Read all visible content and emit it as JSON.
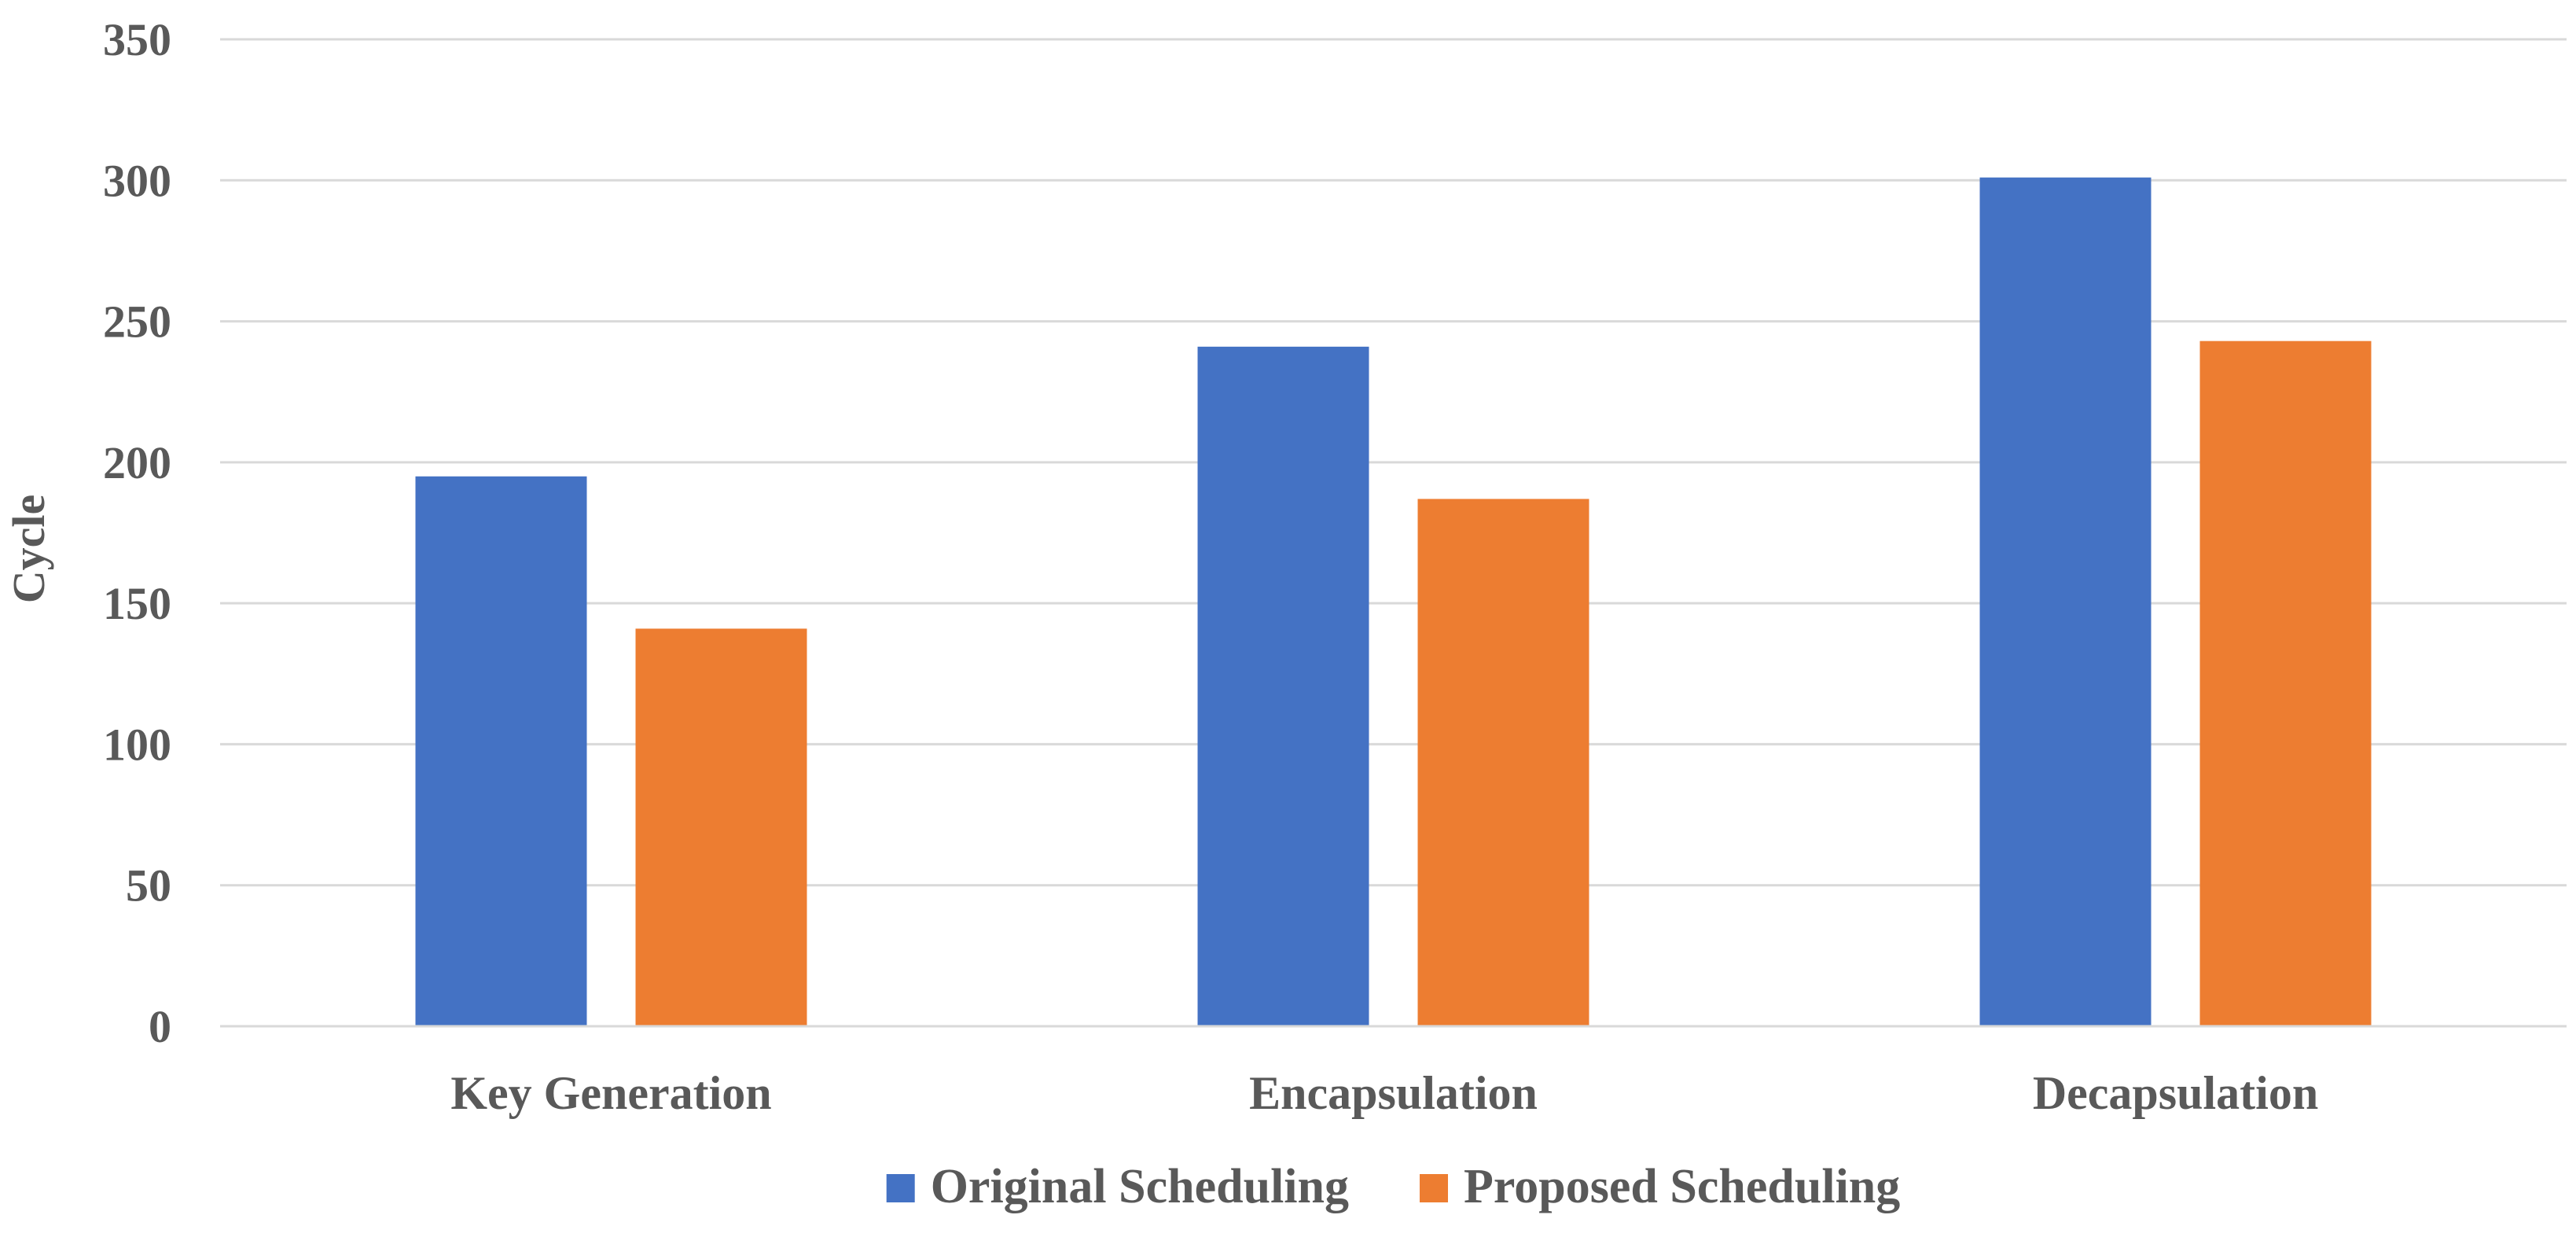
{
  "chart_data": {
    "type": "bar",
    "title": "",
    "xlabel": "",
    "ylabel": "Cycle",
    "ylim": [
      0,
      350
    ],
    "yticks": [
      0,
      50,
      100,
      150,
      200,
      250,
      300,
      350
    ],
    "grid": true,
    "legend_position": "bottom",
    "categories": [
      "Key Generation",
      "Encapsulation",
      "Decapsulation"
    ],
    "series": [
      {
        "name": "Original Scheduling",
        "color": "#4472c4",
        "values": [
          195,
          241,
          301
        ]
      },
      {
        "name": "Proposed Scheduling",
        "color": "#ed7d31",
        "values": [
          141,
          187,
          243
        ]
      }
    ]
  }
}
